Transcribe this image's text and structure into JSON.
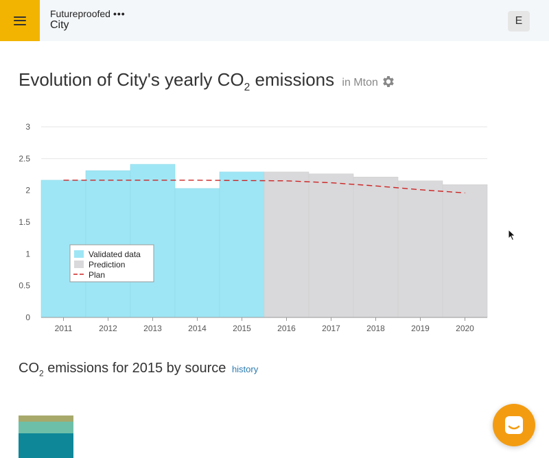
{
  "header": {
    "org_name": "Futureproofed",
    "org_menu": "•••",
    "city_name": "City",
    "user_initial": "E"
  },
  "emissions_title": {
    "text_prefix": "Evolution of City's yearly CO",
    "subscript": "2",
    "text_suffix": " emissions",
    "unit": "in Mton"
  },
  "source_title": {
    "prefix": "CO",
    "subscript": "2",
    "suffix": " emissions for 2015 by source",
    "history_link": "history"
  },
  "colors": {
    "accent": "#f2b400",
    "validated": "#9ee6f5",
    "prediction": "#d9d8da",
    "plan": "#cc2222",
    "chat": "#f39c12"
  },
  "chart_data": {
    "type": "bar",
    "categories": [
      "2011",
      "2012",
      "2013",
      "2014",
      "2015",
      "2016",
      "2017",
      "2018",
      "2019",
      "2020"
    ],
    "series": [
      {
        "name": "Validated data",
        "values": [
          2.16,
          2.31,
          2.41,
          2.03,
          2.29,
          null,
          null,
          null,
          null,
          null
        ]
      },
      {
        "name": "Prediction",
        "values": [
          null,
          null,
          null,
          null,
          null,
          2.29,
          2.26,
          2.21,
          2.15,
          2.09
        ]
      },
      {
        "name": "Plan",
        "type": "line",
        "values": [
          2.16,
          2.16,
          2.16,
          2.16,
          2.155,
          2.15,
          2.12,
          2.07,
          2.01,
          1.96
        ]
      }
    ],
    "yticks": [
      "0",
      "0.5",
      "1",
      "1.5",
      "2",
      "2.5",
      "3"
    ],
    "ylim": [
      0,
      3
    ],
    "grid": true,
    "legend_position": "bottom-left"
  },
  "stack_colors": [
    "#0e8799",
    "#6ebfa8",
    "#a7a96b"
  ]
}
